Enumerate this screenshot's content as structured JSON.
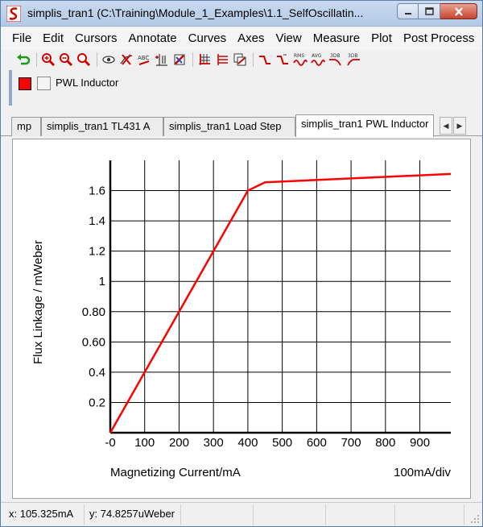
{
  "window": {
    "title": "simplis_tran1 (C:\\Training\\Module_1_Examples\\1.1_SelfOscillatin..."
  },
  "menu": [
    "File",
    "Edit",
    "Cursors",
    "Annotate",
    "Curves",
    "Axes",
    "View",
    "Measure",
    "Plot",
    "Post Process"
  ],
  "toolbar": {
    "icons": [
      "undo-icon",
      "zoom-in-icon",
      "zoom-out-icon",
      "zoom-full-icon",
      "eye-icon",
      "delete-curve-icon",
      "rename-icon",
      "add-axis-icon",
      "curve-color-icon",
      "grid-icon",
      "stack-icon",
      "copy-icon",
      "rise-time-icon",
      "fall-time-icon",
      "rms-icon",
      "avg-icon",
      "3db-icon",
      "3db-high-icon"
    ],
    "badges": {
      "rms": "RMS",
      "avg": "AVG",
      "db1": "3DB",
      "db2": "3DB"
    }
  },
  "legend": {
    "curve_label": "PWL Inductor",
    "curve_color": "#ff0000"
  },
  "tabs": [
    {
      "label": "mp"
    },
    {
      "label": "simplis_tran1 TL431 A"
    },
    {
      "label": "simplis_tran1 Load Step"
    },
    {
      "label": "simplis_tran1 PWL Inductor"
    }
  ],
  "chart_data": {
    "type": "line",
    "xlabel": "Magnetizing Current/mA",
    "ylabel": "Flux Linkage / mWeber",
    "x_scale_label": "100mA/div",
    "xlim": [
      0,
      990
    ],
    "ylim": [
      0,
      1.8
    ],
    "x_ticks": [
      0,
      100,
      200,
      300,
      400,
      500,
      600,
      700,
      800,
      900
    ],
    "x_tick_labels": [
      "-0",
      "100",
      "200",
      "300",
      "400",
      "500",
      "600",
      "700",
      "800",
      "900"
    ],
    "y_ticks": [
      0.2,
      0.4,
      0.6,
      0.8,
      1.0,
      1.2,
      1.4,
      1.6
    ],
    "y_tick_labels": [
      "0.2",
      "0.4",
      "0.60",
      "0.80",
      "1",
      "1.2",
      "1.4",
      "1.6"
    ],
    "grid": true,
    "series": [
      {
        "name": "PWL Inductor",
        "color": "#ff0000",
        "x": [
          0,
          400,
          450,
          990
        ],
        "y": [
          0,
          1.6,
          1.655,
          1.71
        ]
      }
    ]
  },
  "status": {
    "x_readout": "x: 105.325mA",
    "y_readout": "y: 74.8257uWeber"
  }
}
